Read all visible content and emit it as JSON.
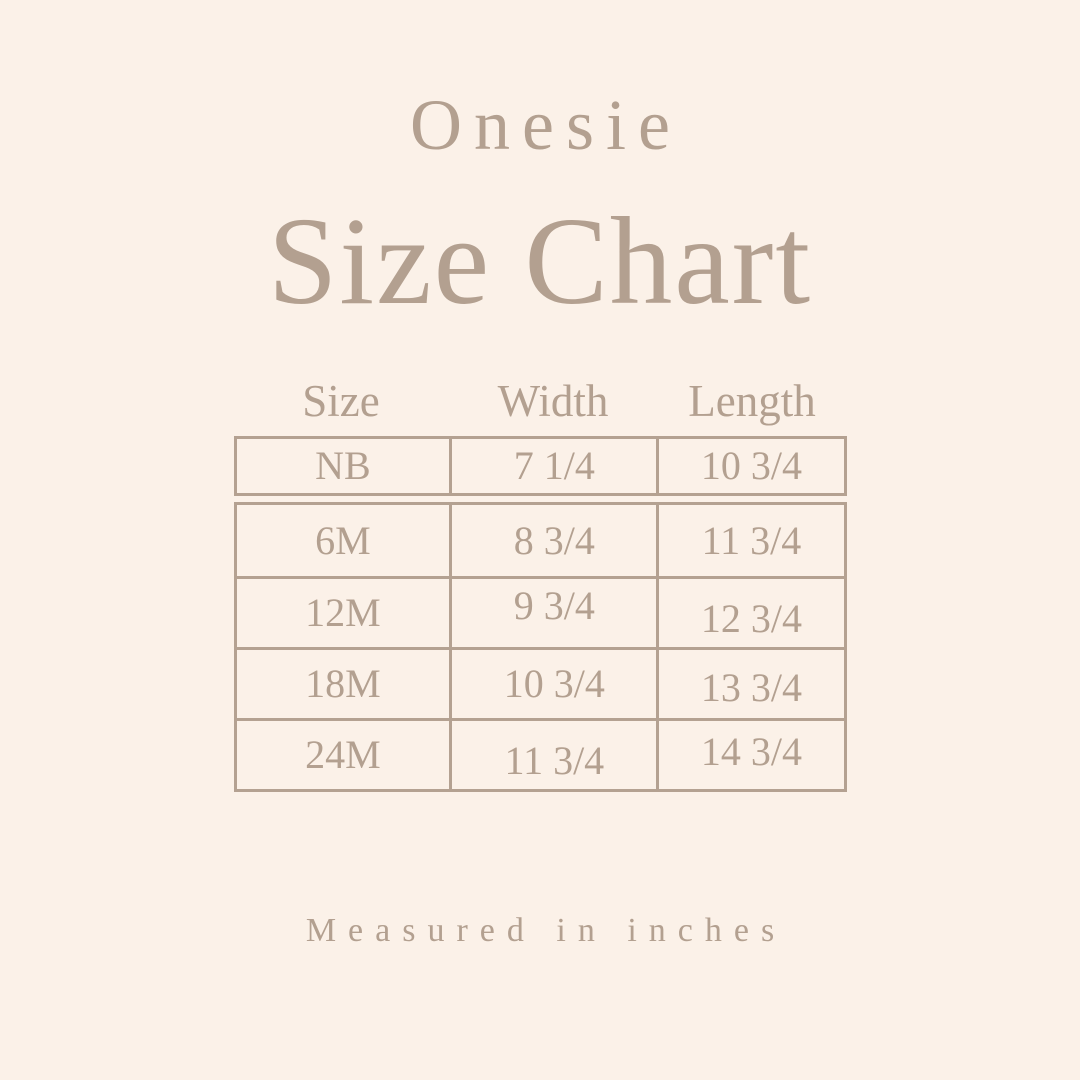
{
  "colors": {
    "bg": "#fbf1e8",
    "accent": "#b3a090",
    "line": "#b4a191"
  },
  "header": {
    "subtitle": "Onesie",
    "title": "Size Chart"
  },
  "size_table": {
    "columns": [
      "Size",
      "Width",
      "Length"
    ],
    "rows": [
      {
        "size": "NB",
        "width": "7 1/4",
        "length": "10 3/4"
      },
      {
        "size": "6M",
        "width": "8 3/4",
        "length": "11 3/4"
      },
      {
        "size": "12M",
        "width": "9 3/4",
        "length": "12 3/4"
      },
      {
        "size": "18M",
        "width": "10 3/4",
        "length": "13 3/4"
      },
      {
        "size": "24M",
        "width": "11 3/4",
        "length": "14 3/4"
      }
    ]
  },
  "footer": {
    "note": "Measured in inches"
  },
  "chart_data": {
    "type": "table",
    "title": "Onesie Size Chart",
    "columns": [
      "Size",
      "Width",
      "Length"
    ],
    "rows": [
      [
        "NB",
        "7 1/4",
        "10 3/4"
      ],
      [
        "6M",
        "8 3/4",
        "11 3/4"
      ],
      [
        "12M",
        "9 3/4",
        "12 3/4"
      ],
      [
        "18M",
        "10 3/4",
        "13 3/4"
      ],
      [
        "24M",
        "11 3/4",
        "14 3/4"
      ]
    ],
    "units_note": "Measured in inches"
  }
}
